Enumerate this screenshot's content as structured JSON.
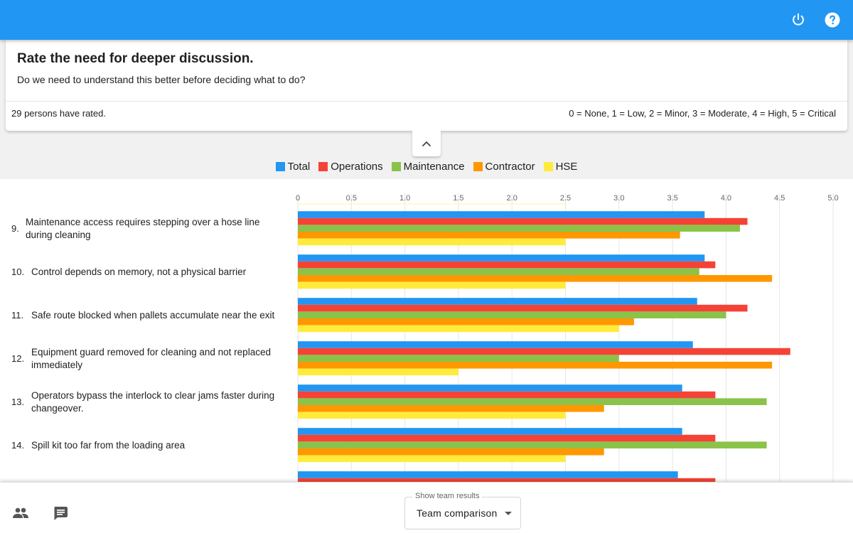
{
  "header": {
    "power_icon": "power-icon",
    "help_icon": "help-icon"
  },
  "question": {
    "title": "Rate the need for deeper discussion.",
    "subtitle": "Do we need to understand this better before deciding what to do?",
    "rated_text": "29 persons have rated.",
    "scale_text": "0 = None, 1 = Low, 2 = Minor, 3 = Moderate, 4 = High, 5 = Critical"
  },
  "collapse_icon": "chevron-up-icon",
  "colors": {
    "Total": "#2196f3",
    "Operations": "#f44336",
    "Maintenance": "#8bc34a",
    "Contractor": "#ff9800",
    "HSE": "#ffeb3b"
  },
  "legend": [
    "Total",
    "Operations",
    "Maintenance",
    "Contractor",
    "HSE"
  ],
  "chart_data": {
    "type": "bar",
    "orientation": "horizontal",
    "xlim": [
      0,
      5.0
    ],
    "x_ticks": [
      "0",
      "0.5",
      "1.0",
      "1.5",
      "2.0",
      "2.5",
      "3.0",
      "3.5",
      "4.0",
      "4.5",
      "5.0"
    ],
    "grid": true,
    "legend_position": "top-center",
    "series_names": [
      "Total",
      "Operations",
      "Maintenance",
      "Contractor",
      "HSE"
    ],
    "items": [
      {
        "num": "9.",
        "label_lines": [
          "Maintenance access requires stepping over a hose line",
          "during cleaning"
        ],
        "values": [
          3.8,
          4.2,
          4.13,
          3.57,
          2.5
        ]
      },
      {
        "num": "10.",
        "label_lines": [
          "Control depends on memory, not a physical barrier"
        ],
        "values": [
          3.8,
          3.9,
          3.75,
          4.43,
          2.5
        ]
      },
      {
        "num": "11.",
        "label_lines": [
          "Safe route blocked when pallets accumulate near the exit"
        ],
        "values": [
          3.73,
          4.2,
          4.0,
          3.14,
          3.0
        ]
      },
      {
        "num": "12.",
        "label_lines": [
          "Equipment guard removed for cleaning and not replaced",
          "immediately"
        ],
        "values": [
          3.69,
          4.6,
          3.0,
          4.43,
          1.5
        ]
      },
      {
        "num": "13.",
        "label_lines": [
          "Operators bypass the interlock to clear jams faster during",
          "changeover."
        ],
        "values": [
          3.59,
          3.9,
          4.38,
          2.86,
          2.5
        ]
      },
      {
        "num": "14.",
        "label_lines": [
          "Spill kit too far from the loading area"
        ],
        "values": [
          3.59,
          3.9,
          4.38,
          2.86,
          2.5
        ]
      },
      {
        "num": "",
        "label_lines": [],
        "values": [
          3.55,
          3.9,
          null,
          null,
          null
        ]
      }
    ]
  },
  "bottom": {
    "team_icon": "people-icon",
    "comment_icon": "comment-icon",
    "select_label": "Show team results",
    "select_value": "Team comparison"
  }
}
